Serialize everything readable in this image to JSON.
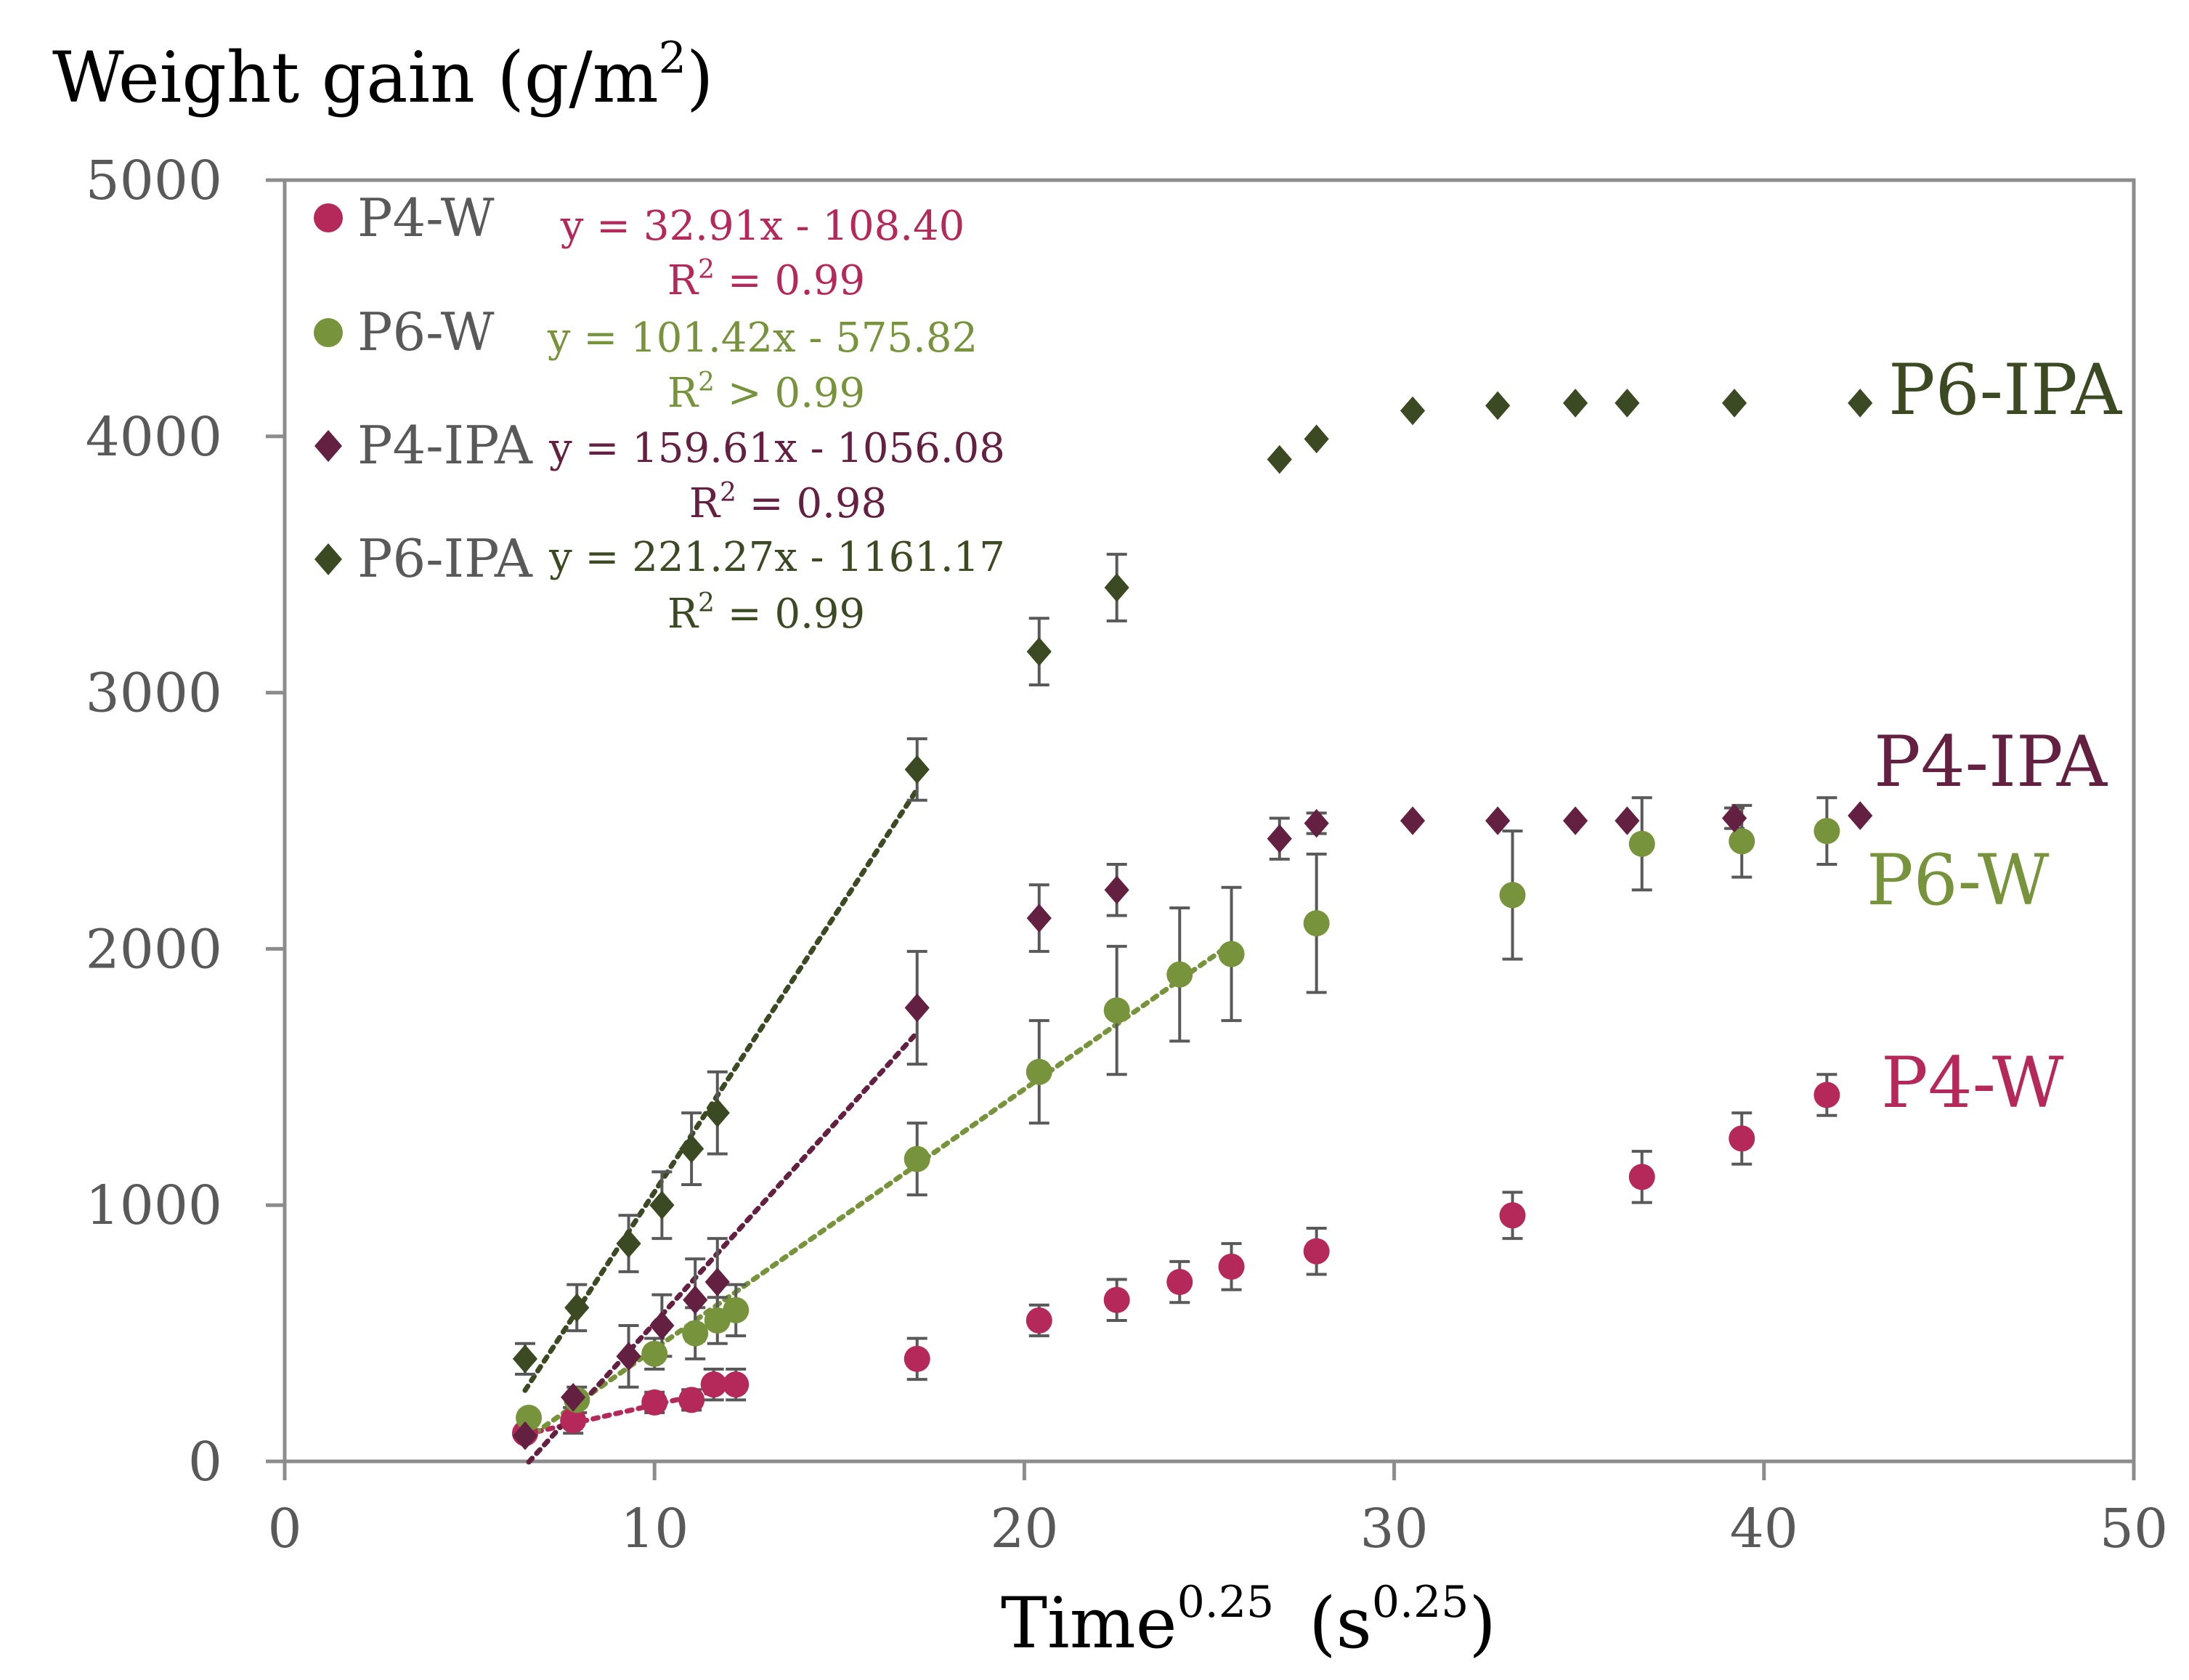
{
  "chart_data": {
    "type": "scatter",
    "title": "",
    "ylabel": "Weight gain (g/m",
    "ylabel_sup": "2",
    "ylabel_close": ")",
    "xlabel_main": "Time",
    "xlabel_sup": "0.25",
    "xlabel_unit": "(s",
    "xlabel_unit_sup": "0.25",
    "xlabel_close": ")",
    "xlim": [
      0,
      50
    ],
    "ylim": [
      0,
      5000
    ],
    "xticks": [
      0,
      10,
      20,
      30,
      40,
      50
    ],
    "yticks": [
      0,
      1000,
      2000,
      3000,
      4000,
      5000
    ],
    "grid": false,
    "legend_position": "top-left",
    "series": [
      {
        "name": "P4-W",
        "marker": "circle",
        "color": "#b5285a",
        "end_label": "P4-W",
        "equation": "y = 32.91x - 108.40",
        "r2_prefix": "R",
        "r2_sup": "2",
        "r2_value": " = 0.99",
        "fit": {
          "slope": 32.91,
          "intercept": -108.4,
          "x_from": 6.5,
          "x_to": 12.2
        },
        "x": [
          6.5,
          7.8,
          10.0,
          11.0,
          11.6,
          12.2,
          17.1,
          20.4,
          22.5,
          24.2,
          25.6,
          27.9,
          33.2,
          36.7,
          39.4,
          41.7
        ],
        "y": [
          110,
          160,
          230,
          240,
          300,
          300,
          400,
          550,
          630,
          700,
          760,
          820,
          960,
          1110,
          1260,
          1430
        ],
        "err": [
          0,
          50,
          40,
          40,
          60,
          60,
          80,
          60,
          80,
          80,
          90,
          90,
          90,
          100,
          100,
          80
        ]
      },
      {
        "name": "P6-W",
        "marker": "circle",
        "color": "#77933c",
        "end_label": "P6-W",
        "equation": "y = 101.42x - 575.82",
        "r2_prefix": "R",
        "r2_sup": "2",
        "r2_value": " > 0.99",
        "fit": {
          "slope": 101.42,
          "intercept": -575.82,
          "x_from": 6.5,
          "x_to": 25.6
        },
        "x": [
          6.6,
          7.9,
          10.0,
          11.1,
          11.7,
          12.2,
          17.1,
          20.4,
          22.5,
          24.2,
          25.6,
          27.9,
          33.2,
          36.7,
          39.4,
          41.7
        ],
        "y": [
          170,
          240,
          420,
          500,
          550,
          590,
          1180,
          1520,
          1760,
          1900,
          1980,
          2100,
          2210,
          2410,
          2420,
          2460
        ],
        "err": [
          0,
          50,
          60,
          100,
          90,
          100,
          140,
          200,
          250,
          260,
          260,
          270,
          250,
          180,
          140,
          130
        ]
      },
      {
        "name": "P4-IPA",
        "marker": "diamond",
        "color": "#632040",
        "end_label": "P4-IPA",
        "equation": "y = 159.61x - 1056.08",
        "r2_prefix": "R",
        "r2_sup": "2",
        "r2_value": " = 0.98",
        "fit": {
          "slope": 159.61,
          "intercept": -1056.08,
          "x_from": 6.6,
          "x_to": 17.1
        },
        "x": [
          6.5,
          7.8,
          9.3,
          10.2,
          11.1,
          11.7,
          17.1,
          20.4,
          22.5,
          26.9,
          27.9,
          30.5,
          32.8,
          34.9,
          36.3,
          39.2,
          42.6
        ],
        "y": [
          100,
          250,
          410,
          530,
          630,
          700,
          1770,
          2120,
          2230,
          2430,
          2490,
          2500,
          2500,
          2500,
          2500,
          2510,
          2520
        ],
        "err": [
          0,
          0,
          120,
          120,
          160,
          170,
          220,
          130,
          100,
          80,
          40,
          0,
          0,
          0,
          0,
          40,
          0
        ]
      },
      {
        "name": "P6-IPA",
        "marker": "diamond",
        "color": "#3b4a23",
        "end_label": "P6-IPA",
        "equation": "y = 221.27x - 1161.17",
        "r2_prefix": "R",
        "r2_sup": "2",
        "r2_value": " = 0.99",
        "fit": {
          "slope": 221.27,
          "intercept": -1161.17,
          "x_from": 6.5,
          "x_to": 17.1
        },
        "x": [
          6.5,
          7.9,
          9.3,
          10.2,
          11.0,
          11.7,
          17.1,
          20.4,
          22.5,
          26.9,
          27.9,
          30.5,
          32.8,
          34.9,
          36.3,
          39.2,
          42.6
        ],
        "y": [
          400,
          600,
          850,
          1000,
          1220,
          1360,
          2700,
          3160,
          3410,
          3910,
          3990,
          4100,
          4120,
          4130,
          4130,
          4130,
          4130
        ],
        "err": [
          60,
          90,
          110,
          130,
          140,
          160,
          120,
          130,
          130,
          0,
          0,
          0,
          0,
          0,
          0,
          0,
          0
        ]
      }
    ]
  }
}
